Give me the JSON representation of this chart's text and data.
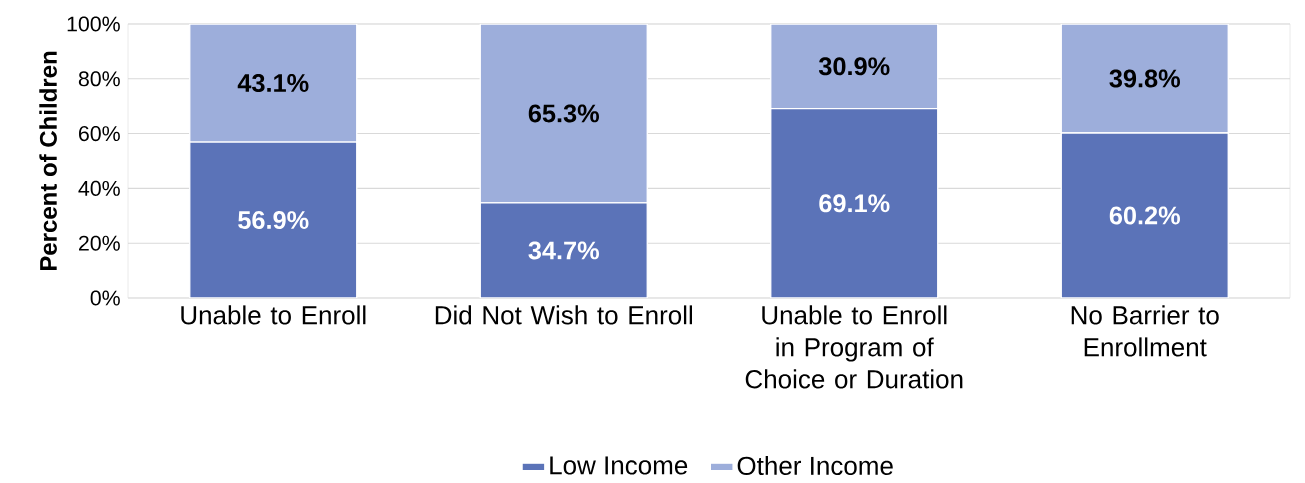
{
  "chart_data": {
    "type": "bar",
    "stacked": true,
    "ylabel": "Percent of Children",
    "categories": [
      "Unable to Enroll",
      "Did Not Wish to Enroll",
      "Unable to Enroll in Program of Choice or Duration",
      "No Barrier to Enrollment"
    ],
    "series": [
      {
        "name": "Low Income",
        "color": "#5b73b8",
        "values": [
          56.9,
          34.7,
          69.1,
          60.2
        ],
        "value_labels": [
          "56.9%",
          "34.7%",
          "69.1%",
          "60.2%"
        ]
      },
      {
        "name": "Other Income",
        "color": "#9daedb",
        "values": [
          43.1,
          65.3,
          30.9,
          39.8
        ],
        "value_labels": [
          "43.1%",
          "65.3%",
          "30.9%",
          "39.8%"
        ]
      }
    ],
    "ylim": [
      0,
      100
    ],
    "yticks": [
      {
        "value": 0,
        "label": "0%"
      },
      {
        "value": 20,
        "label": "20%"
      },
      {
        "value": 40,
        "label": "40%"
      },
      {
        "value": 60,
        "label": "60%"
      },
      {
        "value": 80,
        "label": "80%"
      },
      {
        "value": 100,
        "label": "100%"
      }
    ],
    "grid": "y",
    "legend": "bottom"
  }
}
